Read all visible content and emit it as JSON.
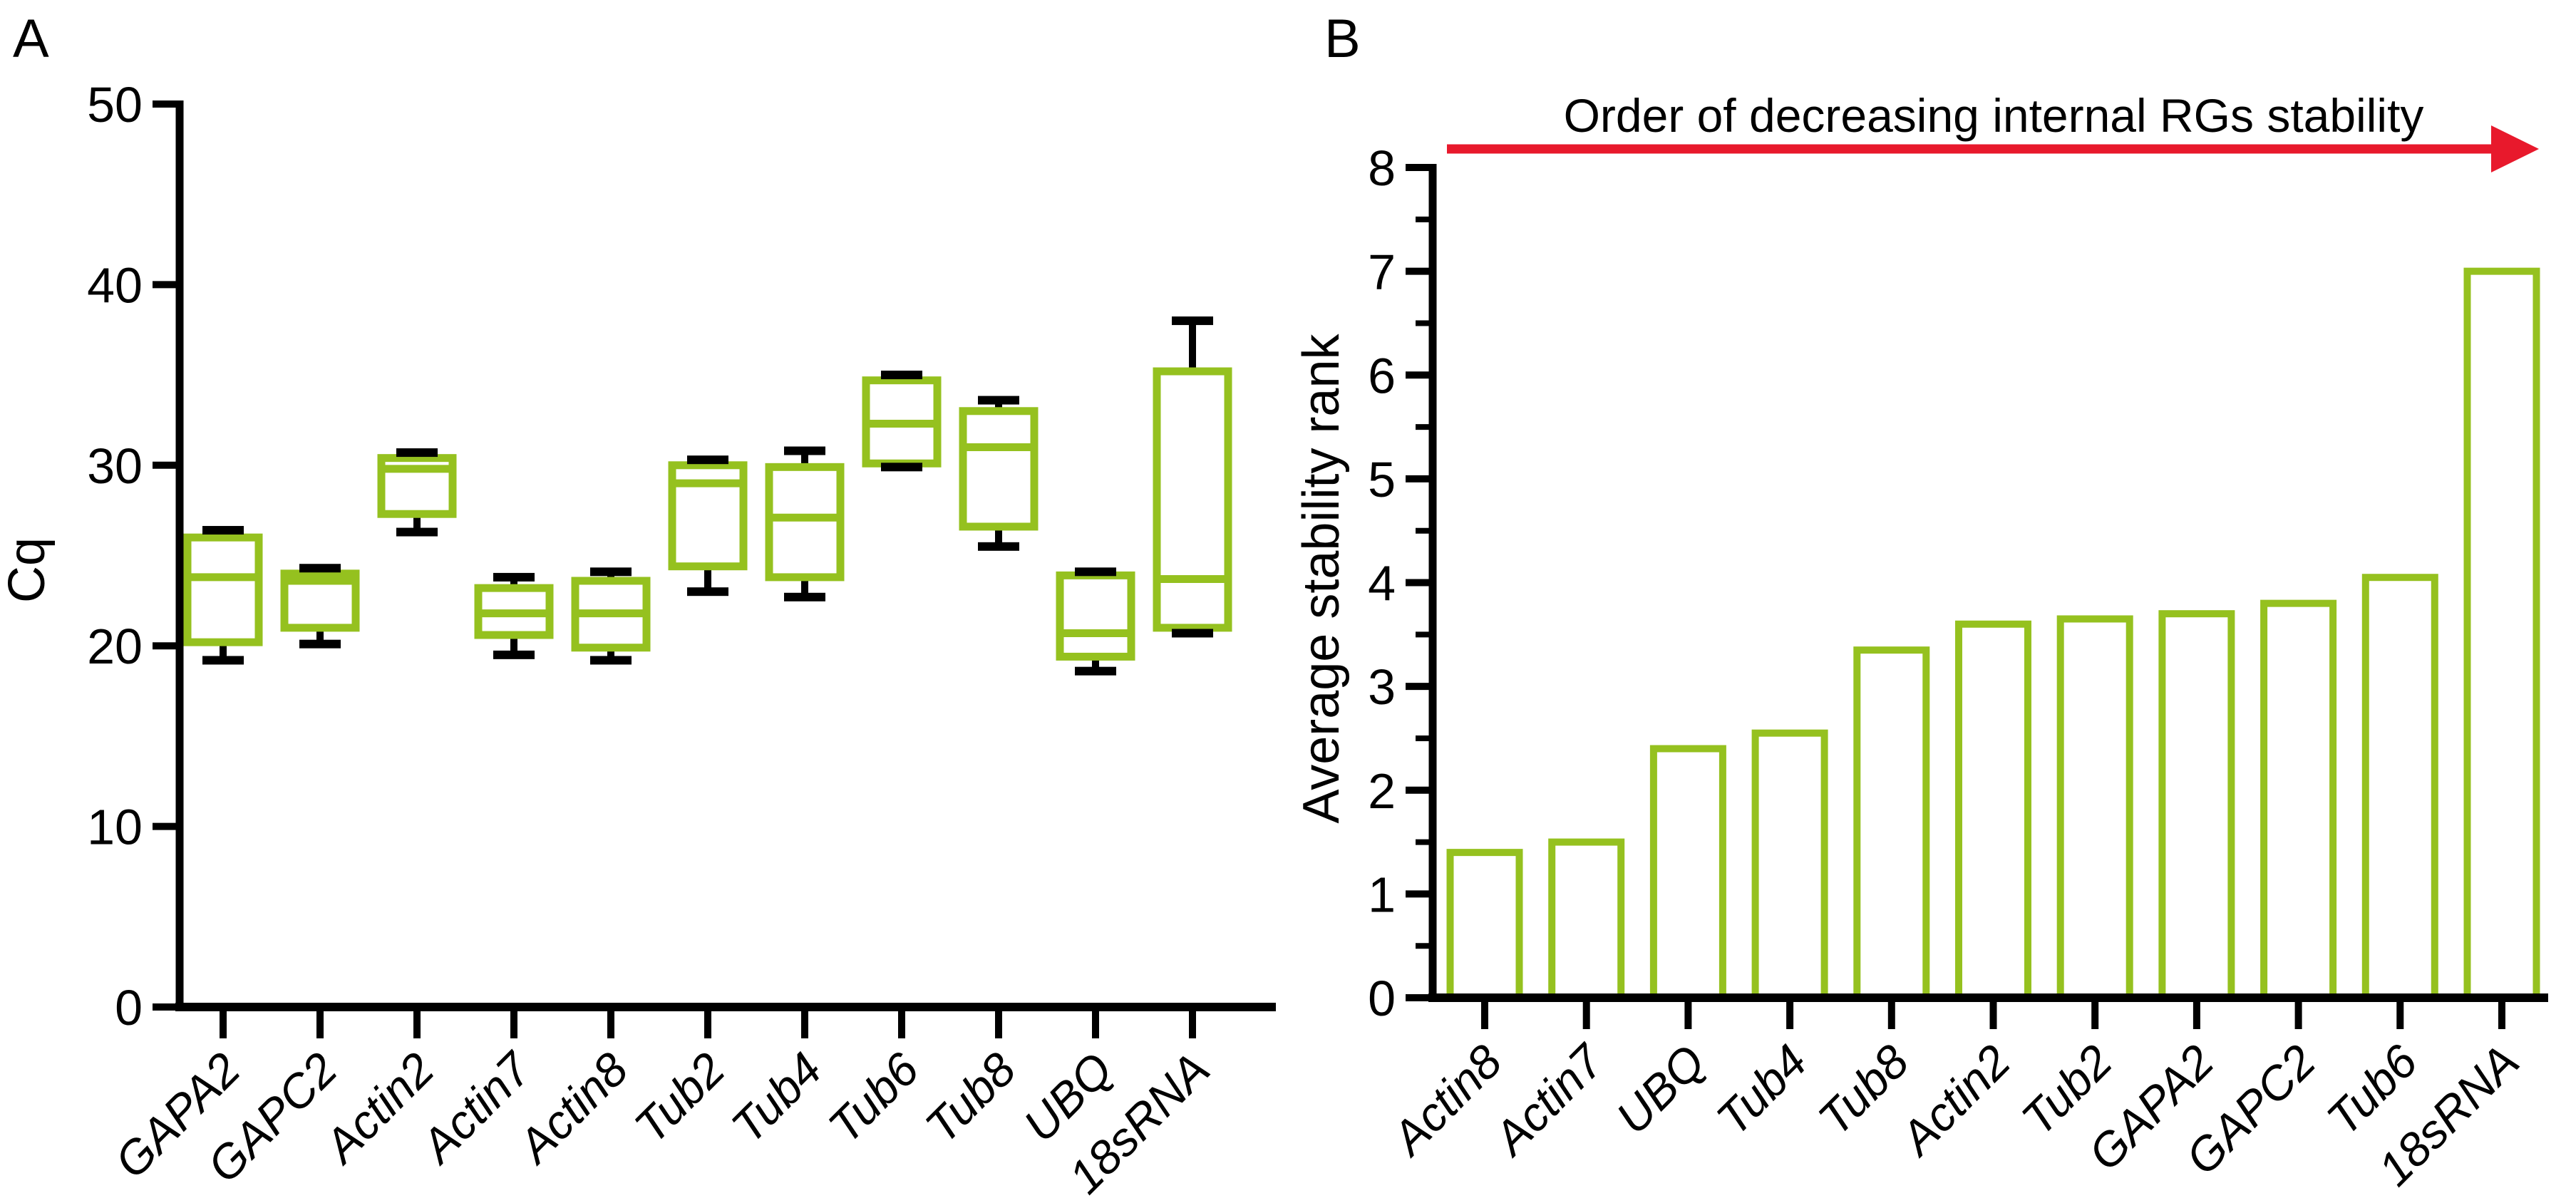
{
  "colors": {
    "series_green": "#95c11f",
    "arrow_red": "#e8192c",
    "axis_black": "#000000",
    "background": "#ffffff"
  },
  "chart_data": [
    {
      "type": "box",
      "panel_label": "A",
      "ylabel": "Cq",
      "ylim": [
        0,
        50
      ],
      "yticks": [
        0,
        10,
        20,
        30,
        40,
        50
      ],
      "categories": [
        "GAPA2",
        "GAPC2",
        "Actin2",
        "Actin7",
        "Actin8",
        "Tub2",
        "Tub4",
        "Tub6",
        "Tub8",
        "UBQ",
        "18sRNA"
      ],
      "series": [
        {
          "name": "Cq",
          "stats": [
            {
              "min": 19.2,
              "q1": 20.2,
              "median": 23.8,
              "q3": 26.0,
              "max": 26.4
            },
            {
              "min": 20.1,
              "q1": 21.0,
              "median": 23.6,
              "q3": 24.0,
              "max": 24.3
            },
            {
              "min": 26.3,
              "q1": 27.3,
              "median": 29.8,
              "q3": 30.4,
              "max": 30.7
            },
            {
              "min": 19.5,
              "q1": 20.6,
              "median": 21.8,
              "q3": 23.2,
              "max": 23.8
            },
            {
              "min": 19.2,
              "q1": 19.9,
              "median": 21.8,
              "q3": 23.6,
              "max": 24.1
            },
            {
              "min": 23.0,
              "q1": 24.4,
              "median": 29.0,
              "q3": 30.0,
              "max": 30.3
            },
            {
              "min": 22.7,
              "q1": 23.8,
              "median": 27.1,
              "q3": 29.9,
              "max": 30.8
            },
            {
              "min": 29.9,
              "q1": 30.1,
              "median": 32.3,
              "q3": 34.7,
              "max": 35.0
            },
            {
              "min": 25.5,
              "q1": 26.6,
              "median": 31.0,
              "q3": 33.0,
              "max": 33.6
            },
            {
              "min": 18.6,
              "q1": 19.4,
              "median": 20.7,
              "q3": 23.9,
              "max": 24.1
            },
            {
              "min": 20.7,
              "q1": 21.0,
              "median": 23.7,
              "q3": 35.2,
              "max": 38.0
            }
          ]
        }
      ],
      "grid": false,
      "legend": false
    },
    {
      "type": "bar",
      "panel_label": "B",
      "ylabel": "Average stability rank",
      "ylim": [
        0,
        8
      ],
      "yticks": [
        0,
        1,
        2,
        3,
        4,
        5,
        6,
        7,
        8
      ],
      "ytick_minor_step": 0.5,
      "categories": [
        "Actin8",
        "Actin7",
        "UBQ",
        "Tub4",
        "Tub8",
        "Actin2",
        "Tub2",
        "GAPA2",
        "GAPC2",
        "Tub6",
        "18sRNA"
      ],
      "values": [
        1.4,
        1.5,
        2.4,
        2.55,
        3.35,
        3.6,
        3.65,
        3.7,
        3.8,
        4.05,
        7.0
      ],
      "annotation": {
        "text": "Order of decreasing internal RGs stability",
        "arrow": "right"
      },
      "grid": false,
      "legend": false
    }
  ]
}
